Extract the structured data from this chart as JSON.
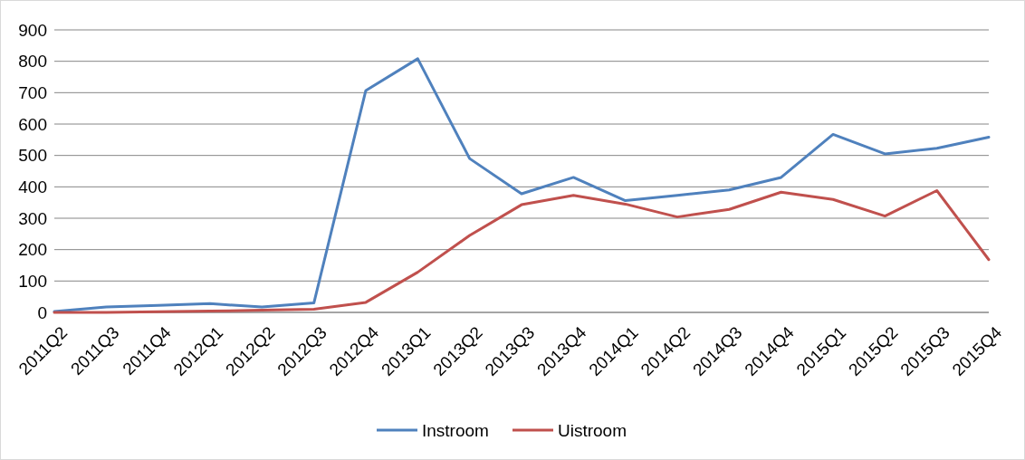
{
  "chart_data": {
    "type": "line",
    "categories": [
      "2011Q2",
      "2011Q3",
      "2011Q4",
      "2012Q1",
      "2012Q2",
      "2012Q3",
      "2012Q4",
      "2013Q1",
      "2013Q2",
      "2013Q3",
      "2013Q4",
      "2014Q1",
      "2014Q2",
      "2014Q3",
      "2014Q4",
      "2015Q1",
      "2015Q2",
      "2015Q3",
      "2015Q4"
    ],
    "series": [
      {
        "name": "Instroom",
        "color": "#4f81bd",
        "values": [
          3,
          17,
          22,
          28,
          17,
          30,
          707,
          808,
          490,
          378,
          430,
          356,
          373,
          390,
          430,
          567,
          505,
          523,
          558
        ]
      },
      {
        "name": "Uistroom",
        "color": "#c0504d",
        "values": [
          0,
          0,
          2,
          4,
          7,
          10,
          32,
          128,
          245,
          343,
          373,
          345,
          304,
          328,
          383,
          360,
          307,
          388,
          168
        ]
      }
    ],
    "ylim": [
      0,
      900
    ],
    "yticks": [
      0,
      100,
      200,
      300,
      400,
      500,
      600,
      700,
      800,
      900
    ],
    "grid": "y",
    "legend": "bottom",
    "marker": "none",
    "line_style": "solid"
  }
}
